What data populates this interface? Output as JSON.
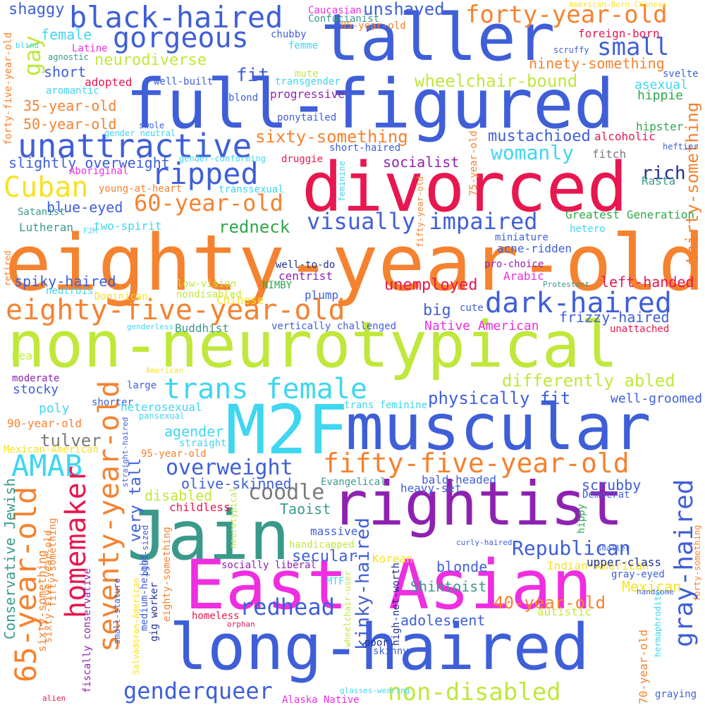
{
  "palette": {
    "blue": "#3f5fd8",
    "orange": "#f5822f",
    "red": "#e8174f",
    "lime": "#bfe83a",
    "cyan": "#3fd6f0",
    "purple": "#8e22b0",
    "magenta": "#ee2ee0",
    "teal": "#3a9a8a",
    "yellow": "#f7e224",
    "gray": "#7a7a7a",
    "green": "#2ea84a",
    "navy": "#203090"
  },
  "words": [
    {
      "text": "taller",
      "color": "blue"
    },
    {
      "text": "full-figured",
      "color": "blue"
    },
    {
      "text": "eighty-year-old",
      "color": "orange"
    },
    {
      "text": "non-neurotypical",
      "color": "lime"
    },
    {
      "text": "divorced",
      "color": "red"
    },
    {
      "text": "M2F",
      "color": "cyan"
    },
    {
      "text": "muscular",
      "color": "blue"
    },
    {
      "text": "rightist",
      "color": "purple"
    },
    {
      "text": "Jain",
      "color": "teal"
    },
    {
      "text": "East Asian",
      "color": "magenta"
    },
    {
      "text": "long-haired",
      "color": "blue"
    },
    {
      "text": "black-haired",
      "color": "blue"
    },
    {
      "text": "gorgeous",
      "color": "blue"
    },
    {
      "text": "forty-year-old",
      "color": "orange"
    },
    {
      "text": "unattractive",
      "color": "blue"
    },
    {
      "text": "ripped",
      "color": "blue"
    },
    {
      "text": "Cuban",
      "color": "yellow"
    },
    {
      "text": "60-year-old",
      "color": "orange"
    },
    {
      "text": "eighty-five-year-old",
      "color": "orange"
    },
    {
      "text": "dark-haired",
      "color": "blue"
    },
    {
      "text": "trans female",
      "color": "cyan"
    },
    {
      "text": "fifty-five-year-old",
      "color": "orange"
    },
    {
      "text": "AMAB",
      "color": "cyan"
    },
    {
      "text": "homemaker",
      "color": "red"
    },
    {
      "text": "65-year-old",
      "color": "orange"
    },
    {
      "text": "seventy-year-old",
      "color": "orange"
    },
    {
      "text": "gray-haired",
      "color": "blue"
    },
    {
      "text": "Republican",
      "color": "blue"
    },
    {
      "text": "redhead",
      "color": "blue"
    },
    {
      "text": "kinky-haired",
      "color": "blue"
    },
    {
      "text": "genderqueer",
      "color": "blue"
    },
    {
      "text": "non-disabled",
      "color": "lime"
    },
    {
      "text": "visually impaired",
      "color": "blue"
    },
    {
      "text": "small",
      "color": "blue"
    },
    {
      "text": "womanly",
      "color": "cyan"
    },
    {
      "text": "overweight",
      "color": "blue"
    },
    {
      "text": "coodle",
      "color": "gray"
    },
    {
      "text": "differently abled",
      "color": "lime"
    },
    {
      "text": "physically fit",
      "color": "blue"
    },
    {
      "text": "sixty-something",
      "color": "orange"
    },
    {
      "text": "thirty-something",
      "color": "orange"
    },
    {
      "text": "gay",
      "color": "lime"
    },
    {
      "text": "fit",
      "color": "blue"
    },
    {
      "text": "neurodiverse",
      "color": "lime"
    },
    {
      "text": "unshaved",
      "color": "blue"
    },
    {
      "text": "shaggy",
      "color": "blue"
    },
    {
      "text": "female",
      "color": "cyan"
    },
    {
      "text": "short",
      "color": "blue"
    },
    {
      "text": "mustachioed",
      "color": "blue"
    },
    {
      "text": "wheelchair-bound",
      "color": "lime"
    },
    {
      "text": "ninety-something",
      "color": "orange"
    },
    {
      "text": "redneck",
      "color": "green"
    },
    {
      "text": "rich",
      "color": "navy"
    },
    {
      "text": "socialist",
      "color": "purple"
    },
    {
      "text": "unemployed",
      "color": "red"
    },
    {
      "text": "blue-eyed",
      "color": "blue"
    },
    {
      "text": "35-year-old",
      "color": "orange"
    },
    {
      "text": "50-year-old",
      "color": "orange"
    },
    {
      "text": "40-year-old",
      "color": "orange"
    },
    {
      "text": "very tall",
      "color": "blue"
    },
    {
      "text": "big",
      "color": "blue"
    },
    {
      "text": "tulver",
      "color": "gray"
    },
    {
      "text": "secular",
      "color": "blue"
    },
    {
      "text": "slightly overweight",
      "color": "blue"
    },
    {
      "text": "spiky-haired",
      "color": "blue"
    },
    {
      "text": "left-handed",
      "color": "red"
    },
    {
      "text": "frizzy-haired",
      "color": "blue"
    },
    {
      "text": "agender",
      "color": "cyan"
    },
    {
      "text": "blonde",
      "color": "blue"
    },
    {
      "text": "Native American",
      "color": "magenta"
    },
    {
      "text": "Shintoist",
      "color": "teal"
    },
    {
      "text": "Taoist",
      "color": "teal"
    },
    {
      "text": "adolescent",
      "color": "blue"
    },
    {
      "text": "Conservative Jewish",
      "color": "teal"
    },
    {
      "text": "disabled",
      "color": "lime"
    },
    {
      "text": "olive-skinned",
      "color": "blue"
    },
    {
      "text": "scrubby",
      "color": "blue"
    },
    {
      "text": "Mexican",
      "color": "yellow"
    },
    {
      "text": "Indian-American",
      "color": "yellow"
    },
    {
      "text": "stocky",
      "color": "blue"
    },
    {
      "text": "poly",
      "color": "cyan"
    },
    {
      "text": "Caucasian",
      "color": "magenta"
    },
    {
      "text": "Confucianist",
      "color": "teal"
    },
    {
      "text": "85-year-old",
      "color": "orange"
    },
    {
      "text": "American-Born Chinese",
      "color": "yellow"
    },
    {
      "text": "blind",
      "color": "cyan"
    },
    {
      "text": "agnostic",
      "color": "teal"
    },
    {
      "text": "Latine",
      "color": "magenta"
    },
    {
      "text": "chubby",
      "color": "blue"
    },
    {
      "text": "femme",
      "color": "cyan"
    },
    {
      "text": "foreign-born",
      "color": "red"
    },
    {
      "text": "scruffy",
      "color": "blue"
    },
    {
      "text": "svelte",
      "color": "blue"
    },
    {
      "text": "adopted",
      "color": "red"
    },
    {
      "text": "aromantic",
      "color": "cyan"
    },
    {
      "text": "well-built",
      "color": "blue"
    },
    {
      "text": "mute",
      "color": "lime"
    },
    {
      "text": "transgender",
      "color": "cyan"
    },
    {
      "text": "blond",
      "color": "blue"
    },
    {
      "text": "progressive",
      "color": "purple"
    },
    {
      "text": "asexual",
      "color": "cyan"
    },
    {
      "text": "hippie",
      "color": "green"
    },
    {
      "text": "swole",
      "color": "blue"
    },
    {
      "text": "ponytailed",
      "color": "blue"
    },
    {
      "text": "gender neutral",
      "color": "cyan"
    },
    {
      "text": "hipster",
      "color": "green"
    },
    {
      "text": "alcoholic",
      "color": "red"
    },
    {
      "text": "heftier",
      "color": "blue"
    },
    {
      "text": "short-haired",
      "color": "blue"
    },
    {
      "text": "gender-conforming",
      "color": "cyan"
    },
    {
      "text": "druggie",
      "color": "red"
    },
    {
      "text": "Aboriginal",
      "color": "magenta"
    },
    {
      "text": "young-at-heart",
      "color": "orange"
    },
    {
      "text": "transsexual",
      "color": "cyan"
    },
    {
      "text": "Rasta",
      "color": "teal"
    },
    {
      "text": "Satanist",
      "color": "teal"
    },
    {
      "text": "fitch",
      "color": "gray"
    },
    {
      "text": "Lutheran",
      "color": "teal"
    },
    {
      "text": "two-spirit",
      "color": "cyan"
    },
    {
      "text": "F2M",
      "color": "cyan"
    },
    {
      "text": "Greatest Generation",
      "color": "green"
    },
    {
      "text": "hetero",
      "color": "cyan"
    },
    {
      "text": "miniature",
      "color": "blue"
    },
    {
      "text": "acne-ridden",
      "color": "blue"
    },
    {
      "text": "pro-choice",
      "color": "purple"
    },
    {
      "text": "well-to-do",
      "color": "navy"
    },
    {
      "text": "centrist",
      "color": "purple"
    },
    {
      "text": "NIMBY",
      "color": "green"
    },
    {
      "text": "Arabic",
      "color": "magenta"
    },
    {
      "text": "Protestant",
      "color": "teal"
    },
    {
      "text": "low-vision",
      "color": "lime"
    },
    {
      "text": "nondisabled",
      "color": "lime"
    },
    {
      "text": "neutrois",
      "color": "cyan"
    },
    {
      "text": "Dominican",
      "color": "yellow"
    },
    {
      "text": "Chinese",
      "color": "yellow"
    },
    {
      "text": "plump",
      "color": "blue"
    },
    {
      "text": "cute",
      "color": "blue"
    },
    {
      "text": "retired",
      "color": "orange"
    },
    {
      "text": "genderless",
      "color": "cyan"
    },
    {
      "text": "Buddhist",
      "color": "teal"
    },
    {
      "text": "vertically challenged",
      "color": "blue"
    },
    {
      "text": "unattached",
      "color": "red"
    },
    {
      "text": "Deaf",
      "color": "lime"
    },
    {
      "text": "American",
      "color": "yellow"
    },
    {
      "text": "moderate",
      "color": "purple"
    },
    {
      "text": "large",
      "color": "blue"
    },
    {
      "text": "shorter",
      "color": "blue"
    },
    {
      "text": "heterosexual",
      "color": "cyan"
    },
    {
      "text": "pansexual",
      "color": "cyan"
    },
    {
      "text": "straight",
      "color": "cyan"
    },
    {
      "text": "trans feminine",
      "color": "cyan"
    },
    {
      "text": "well-groomed",
      "color": "blue"
    },
    {
      "text": "90-year-old",
      "color": "orange"
    },
    {
      "text": "Mexican-American",
      "color": "yellow"
    },
    {
      "text": "95-year-old",
      "color": "orange"
    },
    {
      "text": "straight-haired",
      "color": "blue"
    },
    {
      "text": "feminine",
      "color": "cyan"
    },
    {
      "text": "75-year-old",
      "color": "orange"
    },
    {
      "text": "bald-headed",
      "color": "blue"
    },
    {
      "text": "Evangelical",
      "color": "teal"
    },
    {
      "text": "heavy-set",
      "color": "blue"
    },
    {
      "text": "Democrat",
      "color": "blue"
    },
    {
      "text": "childless",
      "color": "red"
    },
    {
      "text": "massive",
      "color": "blue"
    },
    {
      "text": "handicapped",
      "color": "lime"
    },
    {
      "text": "hippy",
      "color": "green"
    },
    {
      "text": "curly-haired",
      "color": "blue"
    },
    {
      "text": "Korean",
      "color": "yellow"
    },
    {
      "text": "smaller",
      "color": "blue"
    },
    {
      "text": "upper-class",
      "color": "navy"
    },
    {
      "text": "gray-eyed",
      "color": "blue"
    },
    {
      "text": "handsome",
      "color": "blue"
    },
    {
      "text": "MTF",
      "color": "cyan"
    },
    {
      "text": "autistic",
      "color": "lime"
    },
    {
      "text": "homeless",
      "color": "red"
    },
    {
      "text": "orphan",
      "color": "red"
    },
    {
      "text": "socially liberal",
      "color": "purple"
    },
    {
      "text": "wheelchair-user",
      "color": "lime"
    },
    {
      "text": "high-net-worth",
      "color": "navy"
    },
    {
      "text": "poor",
      "color": "navy"
    },
    {
      "text": "skinny",
      "color": "blue"
    },
    {
      "text": "glasses-wearing",
      "color": "cyan"
    },
    {
      "text": "Alaska Native",
      "color": "magenta"
    },
    {
      "text": "alien",
      "color": "red"
    },
    {
      "text": "graying",
      "color": "blue"
    },
    {
      "text": "hermaphrodite",
      "color": "cyan"
    },
    {
      "text": "70-year-old",
      "color": "orange"
    },
    {
      "text": "forty-something",
      "color": "orange"
    },
    {
      "text": "fiscally conservative",
      "color": "purple"
    },
    {
      "text": "fifty-something",
      "color": "orange"
    },
    {
      "text": "sixty-something",
      "color": "orange"
    },
    {
      "text": "sixty-five-year-old",
      "color": "orange"
    },
    {
      "text": "plus-sized",
      "color": "blue"
    },
    {
      "text": "small-stature",
      "color": "blue"
    },
    {
      "text": "Salvadoran-American",
      "color": "yellow"
    },
    {
      "text": "medium-height",
      "color": "blue"
    },
    {
      "text": "gig worker",
      "color": "navy"
    },
    {
      "text": "eighty-something",
      "color": "orange"
    },
    {
      "text": "neurotypical",
      "color": "lime"
    },
    {
      "text": "forty-five-year-old",
      "color": "orange"
    },
    {
      "text": "fifty-year-old",
      "color": "orange"
    }
  ]
}
